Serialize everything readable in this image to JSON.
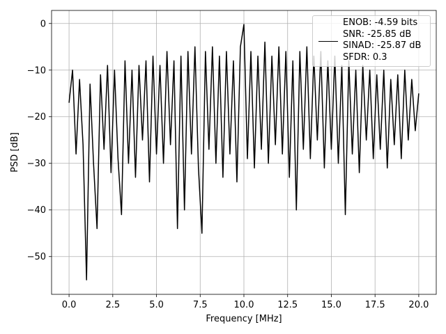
{
  "chart_data": {
    "type": "line",
    "xlabel": "Frequency [MHz]",
    "ylabel": "PSD [dB]",
    "x": [
      0.0,
      0.2,
      0.4,
      0.6,
      0.8,
      1.0,
      1.2,
      1.4,
      1.6,
      1.8,
      2.0,
      2.2,
      2.4,
      2.6,
      2.8,
      3.0,
      3.2,
      3.4,
      3.6,
      3.8,
      4.0,
      4.2,
      4.4,
      4.6,
      4.8,
      5.0,
      5.2,
      5.4,
      5.6,
      5.8,
      6.0,
      6.2,
      6.4,
      6.6,
      6.8,
      7.0,
      7.2,
      7.4,
      7.6,
      7.8,
      8.0,
      8.2,
      8.4,
      8.6,
      8.8,
      9.0,
      9.2,
      9.4,
      9.6,
      9.8,
      10.0,
      10.2,
      10.4,
      10.6,
      10.8,
      11.0,
      11.2,
      11.4,
      11.6,
      11.8,
      12.0,
      12.2,
      12.4,
      12.6,
      12.8,
      13.0,
      13.2,
      13.4,
      13.6,
      13.8,
      14.0,
      14.2,
      14.4,
      14.6,
      14.8,
      15.0,
      15.2,
      15.4,
      15.6,
      15.8,
      16.0,
      16.2,
      16.4,
      16.6,
      16.8,
      17.0,
      17.2,
      17.4,
      17.6,
      17.8,
      18.0,
      18.2,
      18.4,
      18.6,
      18.8,
      19.0,
      19.2,
      19.4,
      19.6,
      19.8,
      20.0
    ],
    "series": [
      {
        "name": "ENOB: -4.59 bits\nSNR: -25.85 dB\nSINAD: -25.87 dB\nSFDR: 0.3",
        "color": "#000000",
        "values": [
          -17,
          -10,
          -28,
          -12,
          -26,
          -55,
          -13,
          -30,
          -44,
          -11,
          -27,
          -9,
          -32,
          -10,
          -29,
          -41,
          -8,
          -30,
          -10,
          -33,
          -9,
          -25,
          -8,
          -34,
          -7,
          -28,
          -9,
          -30,
          -6,
          -26,
          -8,
          -44,
          -7,
          -40,
          -6,
          -28,
          -5,
          -31,
          -45,
          -6,
          -27,
          -5,
          -30,
          -7,
          -33,
          -6,
          -28,
          -8,
          -34,
          -5,
          -0.2,
          -29,
          -6,
          -31,
          -7,
          -27,
          -4,
          -30,
          -7,
          -26,
          -5,
          -28,
          -6,
          -33,
          -8,
          -40,
          -6,
          -27,
          -5,
          -29,
          -7,
          -25,
          -6,
          -31,
          -8,
          -27,
          -7,
          -30,
          -9,
          -41,
          -8,
          -28,
          -10,
          -32,
          -9,
          -25,
          -10,
          -29,
          -11,
          -27,
          -10,
          -31,
          -12,
          -26,
          -11,
          -29,
          -10,
          -25,
          -12,
          -23,
          -15
        ]
      }
    ],
    "xlim": [
      -1,
      21
    ],
    "ylim": [
      -58.1,
      2.8
    ],
    "xticks": [
      {
        "value": 0,
        "label": "0.0"
      },
      {
        "value": 2.5,
        "label": "2.5"
      },
      {
        "value": 5,
        "label": "5.0"
      },
      {
        "value": 7.5,
        "label": "7.5"
      },
      {
        "value": 10,
        "label": "10.0"
      },
      {
        "value": 12.5,
        "label": "12.5"
      },
      {
        "value": 15,
        "label": "15.0"
      },
      {
        "value": 17.5,
        "label": "17.5"
      },
      {
        "value": 20,
        "label": "20.0"
      }
    ],
    "yticks": [
      {
        "value": 0,
        "label": "0"
      },
      {
        "value": -10,
        "label": "−10"
      },
      {
        "value": -20,
        "label": "−20"
      },
      {
        "value": -30,
        "label": "−30"
      },
      {
        "value": -40,
        "label": "−40"
      },
      {
        "value": -50,
        "label": "−50"
      }
    ],
    "grid": true,
    "legend": "upper right"
  }
}
